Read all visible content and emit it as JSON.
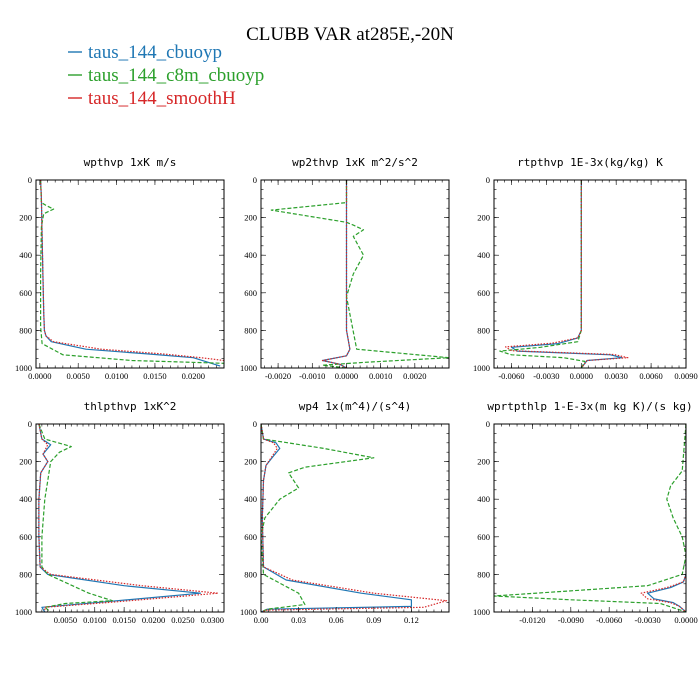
{
  "figure": {
    "title": "CLUBB VAR at285E,-20N"
  },
  "legend": [
    {
      "label": "taus_144_cbuoyp",
      "color": "#1f77b4"
    },
    {
      "label": "taus_144_c8m_cbuoyp",
      "color": "#2ca02c"
    },
    {
      "label": "taus_144_smoothH",
      "color": "#d62728"
    }
  ],
  "chart_data": [
    {
      "type": "line",
      "title": "wpthvp  1xK m/s",
      "xlim": [
        -0.0005,
        0.024
      ],
      "ylim": [
        1000,
        0
      ],
      "xticks": [
        0.0,
        0.005,
        0.01,
        0.015,
        0.02
      ],
      "xticklabels": [
        "0.0000",
        "0.0050",
        "0.0100",
        "0.0150",
        "0.0200"
      ],
      "yticks": [
        0,
        200,
        400,
        600,
        800,
        1000
      ],
      "yticklabels": [
        "0",
        "200",
        "400",
        "600",
        "800",
        "1000"
      ],
      "series": [
        {
          "name": "taus_144_cbuoyp",
          "style": "solid",
          "color": "#1f77b4",
          "x": [
            0.0001,
            0.0002,
            0.0003,
            0.0004,
            0.0005,
            0.0006,
            0.0008,
            0.0015,
            0.006,
            0.014,
            0.02,
            0.0235
          ],
          "y": [
            0,
            100,
            300,
            500,
            700,
            800,
            830,
            860,
            900,
            925,
            945,
            990
          ]
        },
        {
          "name": "taus_144_c8m_cbuoyp",
          "style": "dashed",
          "color": "#2ca02c",
          "x": [
            0.0001,
            0.0002,
            0.0008,
            0.0018,
            0.0005,
            0.0002,
            0.0001,
            0.0001,
            0.0003,
            0.003,
            0.012,
            0.024
          ],
          "y": [
            0,
            120,
            135,
            155,
            180,
            250,
            500,
            780,
            870,
            930,
            960,
            975
          ]
        },
        {
          "name": "taus_144_smoothH",
          "style": "dotted",
          "color": "#d62728",
          "x": [
            0.0001,
            0.0002,
            0.0003,
            0.0004,
            0.0005,
            0.0006,
            0.0008,
            0.0018,
            0.008,
            0.016,
            0.021,
            0.024
          ],
          "y": [
            0,
            100,
            300,
            500,
            700,
            800,
            830,
            860,
            900,
            925,
            945,
            960
          ]
        }
      ]
    },
    {
      "type": "line",
      "title": "wp2thvp  1xK m^2/s^2",
      "xlim": [
        -0.0025,
        0.003
      ],
      "ylim": [
        1000,
        0
      ],
      "xticks": [
        -0.002,
        -0.001,
        0.0,
        0.001,
        0.002
      ],
      "xticklabels": [
        "-0.0020",
        "-0.0010",
        "0.0000",
        "0.0010",
        "0.0020"
      ],
      "yticks": [
        0,
        200,
        400,
        600,
        800,
        1000
      ],
      "yticklabels": [
        "0",
        "200",
        "400",
        "600",
        "800",
        "1000"
      ],
      "series": [
        {
          "name": "taus_144_cbuoyp",
          "style": "solid",
          "color": "#1f77b4",
          "x": [
            0.0,
            0.0,
            0.0,
            0.0,
            0.0,
            0.0001,
            0.0,
            -0.0007,
            -0.0002,
            0.0
          ],
          "y": [
            0,
            200,
            400,
            600,
            800,
            900,
            935,
            960,
            980,
            1000
          ]
        },
        {
          "name": "taus_144_c8m_cbuoyp",
          "style": "dashed",
          "color": "#2ca02c",
          "x": [
            0.0,
            0.0,
            -0.0022,
            0.0,
            0.0002,
            0.0005,
            0.0002,
            0.0005,
            0.0002,
            0.0,
            0.0003,
            0.003,
            0.0005,
            -0.0007,
            0.0
          ],
          "y": [
            0,
            120,
            160,
            225,
            240,
            265,
            300,
            400,
            500,
            620,
            900,
            945,
            970,
            985,
            1000
          ]
        },
        {
          "name": "taus_144_smoothH",
          "style": "dotted",
          "color": "#d62728",
          "x": [
            0.0,
            0.0,
            0.0,
            0.0,
            0.0,
            0.0001,
            0.0,
            -0.0007,
            -0.0002,
            0.0
          ],
          "y": [
            0,
            200,
            400,
            600,
            800,
            900,
            935,
            960,
            980,
            1000
          ]
        }
      ]
    },
    {
      "type": "line",
      "title": "rtpthvp  1E-3x(kg/kg) K",
      "xlim": [
        -0.0075,
        0.009
      ],
      "ylim": [
        1000,
        0
      ],
      "xticks": [
        -0.006,
        -0.003,
        0.0,
        0.003,
        0.006,
        0.009
      ],
      "xticklabels": [
        "-0.0060",
        "-0.0030",
        "0.0000",
        "0.0030",
        "0.0060",
        "0.0090"
      ],
      "yticks": [
        0,
        200,
        400,
        600,
        800,
        1000
      ],
      "yticklabels": [
        "0",
        "200",
        "400",
        "600",
        "800",
        "1000"
      ],
      "series": [
        {
          "name": "taus_144_cbuoyp",
          "style": "solid",
          "color": "#1f77b4",
          "x": [
            0.0,
            0.0,
            0.0,
            0.0,
            -0.0003,
            -0.002,
            -0.006,
            -0.0055,
            0.0025,
            0.0035,
            0.0005,
            0.0
          ],
          "y": [
            0,
            200,
            600,
            800,
            840,
            870,
            890,
            910,
            930,
            945,
            960,
            1000
          ]
        },
        {
          "name": "taus_144_c8m_cbuoyp",
          "style": "dashed",
          "color": "#2ca02c",
          "x": [
            0.0,
            0.0,
            0.0,
            0.0,
            -0.0003,
            -0.0035,
            -0.007,
            -0.006,
            -0.0015,
            0.0003,
            0.0
          ],
          "y": [
            0,
            200,
            600,
            800,
            860,
            890,
            910,
            930,
            945,
            965,
            1000
          ]
        },
        {
          "name": "taus_144_smoothH",
          "style": "dotted",
          "color": "#d62728",
          "x": [
            0.0,
            0.0,
            0.0,
            0.0,
            -0.0003,
            -0.0025,
            -0.0065,
            -0.006,
            0.0028,
            0.004,
            0.0005,
            0.0
          ],
          "y": [
            0,
            200,
            600,
            800,
            840,
            868,
            888,
            908,
            928,
            945,
            960,
            1000
          ]
        }
      ]
    },
    {
      "type": "line",
      "title": "thlpthvp  1xK^2",
      "xlim": [
        0.0,
        0.032
      ],
      "ylim": [
        1000,
        0
      ],
      "xticks": [
        0.005,
        0.01,
        0.015,
        0.02,
        0.025,
        0.03
      ],
      "xticklabels": [
        "0.0050",
        "0.0100",
        "0.0150",
        "0.0200",
        "0.0250",
        "0.0300"
      ],
      "yticks": [
        0,
        200,
        400,
        600,
        800,
        1000
      ],
      "yticklabels": [
        "0",
        "200",
        "400",
        "600",
        "800",
        "1000"
      ],
      "series": [
        {
          "name": "taus_144_cbuoyp",
          "style": "solid",
          "color": "#1f77b4",
          "x": [
            0.0005,
            0.001,
            0.0025,
            0.0012,
            0.002,
            0.0008,
            0.0005,
            0.0005,
            0.0007,
            0.002,
            0.015,
            0.028,
            0.012,
            0.001,
            0.0015
          ],
          "y": [
            0,
            80,
            110,
            160,
            200,
            260,
            400,
            600,
            760,
            800,
            860,
            900,
            945,
            975,
            1000
          ]
        },
        {
          "name": "taus_144_c8m_cbuoyp",
          "style": "dashed",
          "color": "#2ca02c",
          "x": [
            0.0005,
            0.0015,
            0.006,
            0.004,
            0.0025,
            0.002,
            0.0015,
            0.001,
            0.001,
            0.002,
            0.009,
            0.013,
            0.005,
            0.0015,
            0.0025
          ],
          "y": [
            0,
            80,
            120,
            150,
            200,
            300,
            400,
            600,
            760,
            800,
            900,
            940,
            955,
            975,
            1000
          ]
        },
        {
          "name": "taus_144_smoothH",
          "style": "dotted",
          "color": "#d62728",
          "x": [
            0.0005,
            0.001,
            0.002,
            0.0012,
            0.002,
            0.0008,
            0.0005,
            0.0005,
            0.0007,
            0.0025,
            0.018,
            0.031,
            0.014,
            0.0015,
            0.0015
          ],
          "y": [
            0,
            80,
            110,
            160,
            200,
            260,
            400,
            600,
            760,
            800,
            860,
            900,
            945,
            975,
            1000
          ]
        }
      ]
    },
    {
      "type": "line",
      "title": "wp4  1x(m^4)/(s^4)",
      "xlim": [
        0.0,
        0.15
      ],
      "ylim": [
        1000,
        0
      ],
      "xticks": [
        0.0,
        0.03,
        0.06,
        0.09,
        0.12
      ],
      "xticklabels": [
        "0.00",
        "0.03",
        "0.06",
        "0.09",
        "0.12"
      ],
      "yticks": [
        0,
        200,
        400,
        600,
        800,
        1000
      ],
      "yticklabels": [
        "0",
        "200",
        "400",
        "600",
        "800",
        "1000"
      ],
      "series": [
        {
          "name": "taus_144_cbuoyp",
          "style": "solid",
          "color": "#1f77b4",
          "x": [
            0.0,
            0.002,
            0.012,
            0.015,
            0.01,
            0.004,
            0.002,
            0.001,
            0.002,
            0.02,
            0.08,
            0.12,
            0.12,
            0.005,
            0.0
          ],
          "y": [
            0,
            80,
            100,
            130,
            170,
            220,
            300,
            500,
            760,
            830,
            900,
            935,
            970,
            985,
            1000
          ]
        },
        {
          "name": "taus_144_c8m_cbuoyp",
          "style": "dashed",
          "color": "#2ca02c",
          "x": [
            0.0,
            0.002,
            0.05,
            0.09,
            0.035,
            0.022,
            0.025,
            0.03,
            0.015,
            0.003,
            0.0,
            0.002,
            0.03,
            0.035,
            0.005,
            0.0
          ],
          "y": [
            0,
            80,
            130,
            180,
            230,
            260,
            290,
            340,
            400,
            500,
            600,
            800,
            900,
            960,
            985,
            1000
          ]
        },
        {
          "name": "taus_144_smoothH",
          "style": "dotted",
          "color": "#d62728",
          "x": [
            0.0,
            0.002,
            0.01,
            0.013,
            0.009,
            0.004,
            0.002,
            0.001,
            0.002,
            0.025,
            0.09,
            0.148,
            0.13,
            0.005,
            0.0
          ],
          "y": [
            0,
            80,
            100,
            130,
            170,
            220,
            300,
            500,
            760,
            830,
            900,
            940,
            975,
            990,
            1000
          ]
        }
      ]
    },
    {
      "type": "line",
      "title": "wprtpthlp  1-E-3x(m kg K)/(s kg)",
      "xlim": [
        -0.015,
        0.0
      ],
      "ylim": [
        1000,
        0
      ],
      "xticks": [
        -0.012,
        -0.009,
        -0.006,
        -0.003,
        0.0
      ],
      "xticklabels": [
        "-0.0120",
        "-0.0090",
        "-0.0060",
        "-0.0030",
        "0.0000"
      ],
      "yticks": [
        0,
        200,
        400,
        600,
        800,
        1000
      ],
      "yticklabels": [
        "0",
        "200",
        "400",
        "600",
        "800",
        "1000"
      ],
      "series": [
        {
          "name": "taus_144_cbuoyp",
          "style": "solid",
          "color": "#1f77b4",
          "x": [
            0.0,
            0.0,
            0.0,
            0.0,
            -0.0002,
            -0.0012,
            -0.003,
            -0.0025,
            -0.001,
            -0.0005,
            0.0
          ],
          "y": [
            0,
            200,
            600,
            800,
            840,
            870,
            900,
            930,
            950,
            970,
            1000
          ]
        },
        {
          "name": "taus_144_c8m_cbuoyp",
          "style": "dashed",
          "color": "#2ca02c",
          "x": [
            0.0,
            -0.0003,
            -0.0012,
            -0.0015,
            -0.001,
            -0.0003,
            0.0,
            -0.0003,
            -0.003,
            -0.015,
            -0.009,
            -0.002,
            0.0
          ],
          "y": [
            0,
            250,
            330,
            400,
            500,
            600,
            700,
            800,
            860,
            915,
            935,
            955,
            1000
          ]
        },
        {
          "name": "taus_144_smoothH",
          "style": "dotted",
          "color": "#d62728",
          "x": [
            0.0,
            0.0,
            0.0,
            0.0,
            -0.0002,
            -0.0015,
            -0.0035,
            -0.003,
            -0.0012,
            -0.0005,
            0.0
          ],
          "y": [
            0,
            200,
            600,
            800,
            840,
            870,
            900,
            930,
            950,
            970,
            1000
          ]
        }
      ]
    }
  ]
}
